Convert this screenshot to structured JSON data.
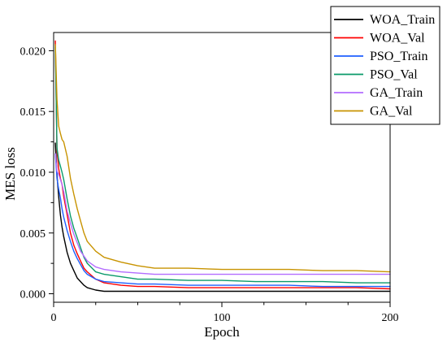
{
  "chart_data": {
    "type": "line",
    "title": "",
    "xlabel": "Epoch",
    "ylabel": "MES loss",
    "xlim": [
      0,
      200
    ],
    "ylim": [
      -0.0007,
      0.0215
    ],
    "x_ticks": [
      0,
      100,
      200
    ],
    "x_tick_labels": [
      "0",
      "100",
      "200"
    ],
    "y_ticks": [
      0.0,
      0.005,
      0.01,
      0.015,
      0.02
    ],
    "y_tick_labels": [
      "0.000",
      "0.005",
      "0.010",
      "0.015",
      "0.020"
    ],
    "grid": false,
    "legend_position": "top-right",
    "series": [
      {
        "name": "WOA_Train",
        "color": "#000000",
        "x": [
          1,
          2,
          3,
          4,
          5,
          6,
          8,
          10,
          12,
          14,
          16,
          18,
          20,
          25,
          30,
          40,
          50,
          60,
          80,
          100,
          120,
          140,
          160,
          180,
          200
        ],
        "values": [
          0.0124,
          0.0098,
          0.008,
          0.0065,
          0.0055,
          0.0047,
          0.0034,
          0.0025,
          0.0019,
          0.0013,
          0.001,
          0.0007,
          0.0005,
          0.0003,
          0.0002,
          0.0002,
          0.0002,
          0.0002,
          0.0002,
          0.0002,
          0.0002,
          0.0002,
          0.0002,
          0.0002,
          0.0002
        ]
      },
      {
        "name": "WOA_Val",
        "color": "#ff0000",
        "x": [
          1,
          2,
          3,
          4,
          5,
          6,
          8,
          10,
          12,
          14,
          16,
          18,
          20,
          25,
          30,
          40,
          50,
          60,
          80,
          100,
          120,
          140,
          160,
          180,
          200
        ],
        "values": [
          0.0208,
          0.0118,
          0.0103,
          0.0095,
          0.009,
          0.008,
          0.0065,
          0.005,
          0.004,
          0.0033,
          0.0027,
          0.0021,
          0.0018,
          0.0012,
          0.0009,
          0.0007,
          0.0006,
          0.0006,
          0.0005,
          0.0005,
          0.0005,
          0.0005,
          0.0005,
          0.0005,
          0.0004
        ]
      },
      {
        "name": "PSO_Train",
        "color": "#1f5fff",
        "x": [
          1,
          2,
          3,
          4,
          5,
          6,
          8,
          10,
          12,
          14,
          16,
          18,
          20,
          25,
          30,
          40,
          50,
          60,
          80,
          100,
          120,
          140,
          160,
          180,
          200
        ],
        "values": [
          0.0115,
          0.0095,
          0.0086,
          0.0079,
          0.007,
          0.0063,
          0.0052,
          0.0043,
          0.0035,
          0.0029,
          0.0024,
          0.0019,
          0.0016,
          0.0012,
          0.001,
          0.0009,
          0.0008,
          0.0008,
          0.0007,
          0.0007,
          0.0007,
          0.0007,
          0.0006,
          0.0006,
          0.0006
        ]
      },
      {
        "name": "PSO_Val",
        "color": "#0a9a6a",
        "x": [
          1,
          2,
          3,
          4,
          5,
          6,
          8,
          10,
          12,
          14,
          16,
          18,
          20,
          25,
          30,
          40,
          50,
          60,
          80,
          100,
          120,
          140,
          160,
          180,
          200
        ],
        "values": [
          0.0203,
          0.012,
          0.011,
          0.0105,
          0.01,
          0.0094,
          0.0078,
          0.0064,
          0.0054,
          0.0046,
          0.0038,
          0.003,
          0.0025,
          0.0018,
          0.0016,
          0.0014,
          0.0012,
          0.0012,
          0.0011,
          0.0011,
          0.001,
          0.001,
          0.001,
          0.0009,
          0.0009
        ]
      },
      {
        "name": "GA_Train",
        "color": "#b36cff",
        "x": [
          1,
          2,
          3,
          4,
          5,
          6,
          8,
          10,
          12,
          14,
          16,
          18,
          20,
          25,
          30,
          40,
          50,
          60,
          80,
          100,
          120,
          140,
          160,
          180,
          200
        ],
        "values": [
          0.0115,
          0.0101,
          0.0098,
          0.0094,
          0.009,
          0.0084,
          0.0068,
          0.0058,
          0.0049,
          0.0042,
          0.0035,
          0.0031,
          0.0027,
          0.0022,
          0.002,
          0.0018,
          0.0017,
          0.0016,
          0.0016,
          0.0016,
          0.0016,
          0.0016,
          0.0016,
          0.0016,
          0.0016
        ]
      },
      {
        "name": "GA_Val",
        "color": "#c89300",
        "x": [
          1,
          2,
          3,
          4,
          5,
          6,
          8,
          10,
          12,
          14,
          16,
          18,
          20,
          25,
          30,
          40,
          50,
          60,
          80,
          100,
          120,
          140,
          160,
          180,
          200
        ],
        "values": [
          0.0205,
          0.016,
          0.0138,
          0.0132,
          0.0127,
          0.0125,
          0.0113,
          0.0095,
          0.0082,
          0.007,
          0.006,
          0.005,
          0.0043,
          0.0035,
          0.003,
          0.0026,
          0.0023,
          0.0021,
          0.0021,
          0.002,
          0.002,
          0.002,
          0.0019,
          0.0019,
          0.0018
        ]
      }
    ]
  }
}
